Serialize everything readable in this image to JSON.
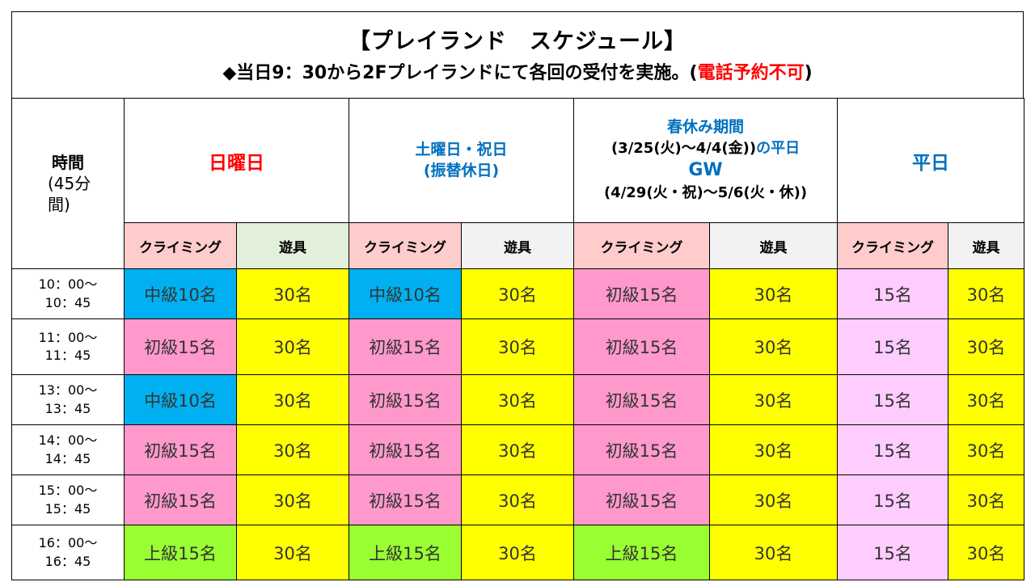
{
  "header": {
    "title": "【プレイランド　スケジュール】",
    "subtitle_main": "◆当日9：30から2Fプレイランドにて各回の受付を実施。(",
    "subtitle_red": "電話予約不可",
    "subtitle_end": ")"
  },
  "table": {
    "time_header": {
      "line1": "時間",
      "line2": "(45分",
      "line3": "間)"
    },
    "groups": {
      "sunday": "日曜日",
      "saturday_line1": "土曜日・祝日",
      "saturday_line2": "(振替休日)",
      "spring_line1": "春休み期間",
      "spring_line2a": "(3/25(火)～4/4(金))",
      "spring_line2b": "の平日",
      "spring_line3": "GW",
      "spring_line4": "(4/29(火・祝)～5/6(火・休))",
      "weekday": "平日"
    },
    "subheaders": {
      "climbing": "クライミング",
      "play": "遊具"
    },
    "rows": [
      {
        "time1": "10：00～",
        "time2": "10：45",
        "cells": [
          "中級10名",
          "30名",
          "中級10名",
          "30名",
          "初級15名",
          "30名",
          "15名",
          "30名"
        ]
      },
      {
        "time1": "11：00～",
        "time2": "11：45",
        "cells": [
          "初級15名",
          "30名",
          "初級15名",
          "30名",
          "初級15名",
          "30名",
          "15名",
          "30名"
        ]
      },
      {
        "time1": "13：00～",
        "time2": "13：45",
        "cells": [
          "中級10名",
          "30名",
          "初級15名",
          "30名",
          "初級15名",
          "30名",
          "15名",
          "30名"
        ]
      },
      {
        "time1": "14：00～",
        "time2": "14：45",
        "cells": [
          "初級15名",
          "30名",
          "初級15名",
          "30名",
          "初級15名",
          "30名",
          "15名",
          "30名"
        ]
      },
      {
        "time1": "15：00～",
        "time2": "15：45",
        "cells": [
          "初級15名",
          "30名",
          "初級15名",
          "30名",
          "初級15名",
          "30名",
          "15名",
          "30名"
        ]
      },
      {
        "time1": "16：00～",
        "time2": "16：45",
        "cells": [
          "上級15名",
          "30名",
          "上級15名",
          "30名",
          "上級15名",
          "30名",
          "15名",
          "30名"
        ]
      }
    ]
  },
  "colors": {
    "intermediate": "#00b0f0",
    "beginner": "#ff99cc",
    "advanced": "#99ff33",
    "play_equipment": "#ffff00",
    "weekday_climbing": "#ffccff",
    "emphasis_red": "#ff0000",
    "header_blue": "#0070c0"
  }
}
